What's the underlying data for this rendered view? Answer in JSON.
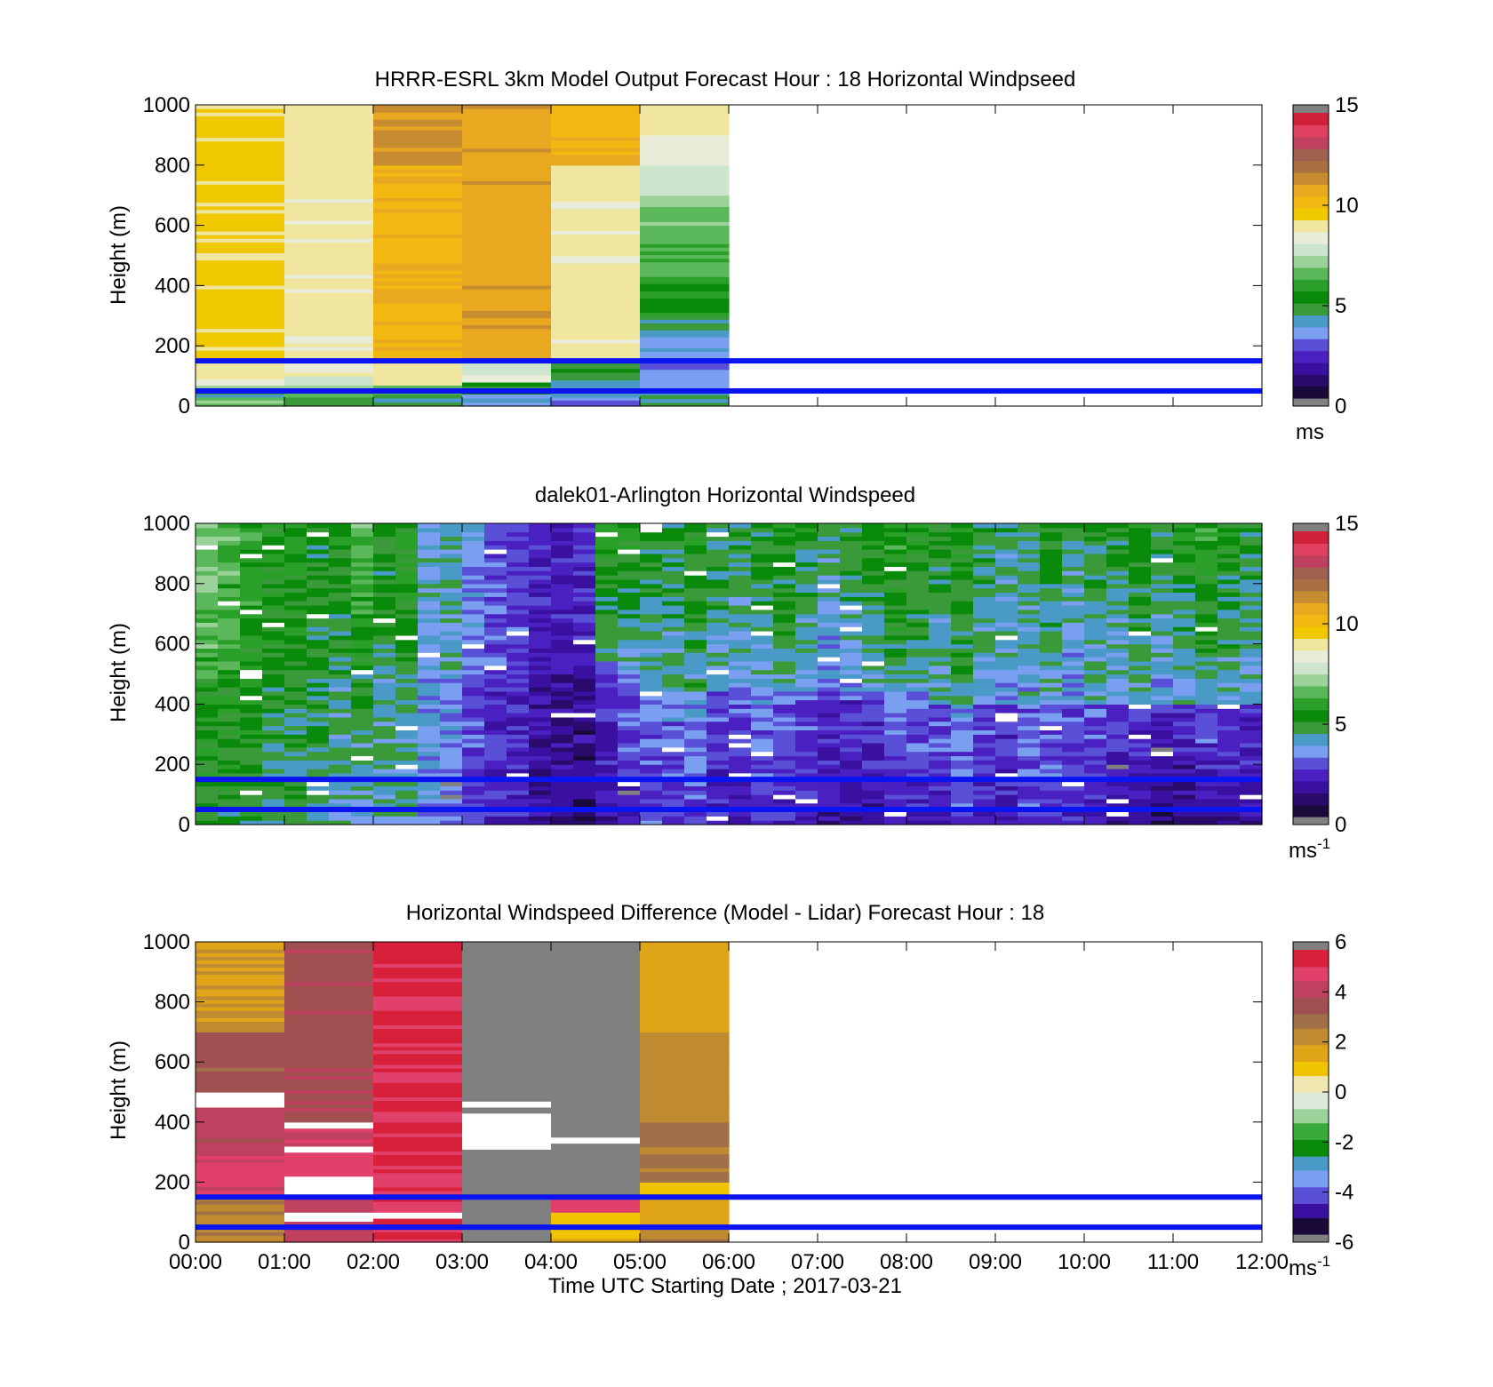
{
  "chart_data": [
    {
      "type": "heatmap",
      "title": "HRRR-ESRL 3km Model Output   Forecast Hour : 18 Horizontal Windpseed",
      "ylabel": "Height (m)",
      "xlabel": "",
      "ylim": [
        0,
        1000
      ],
      "xlim": [
        0,
        12
      ],
      "yticks": [
        "0",
        "200",
        "400",
        "600",
        "800",
        "1000"
      ],
      "xticks": [],
      "colorbar": {
        "ticks": [
          "0",
          "5",
          "10",
          "15"
        ],
        "range": [
          0,
          15
        ],
        "unit": "ms",
        "unit_sup": "",
        "palette": "speed"
      },
      "reference_lines_m": [
        50,
        150
      ],
      "data_extent_hours": [
        0,
        6
      ],
      "bins_per_hour": 1,
      "columns": [
        {
          "hour": 0,
          "levels": [
            [
              0,
              30,
              7
            ],
            [
              30,
              50,
              4.5
            ],
            [
              50,
              70,
              7.5
            ],
            [
              70,
              90,
              8.5
            ],
            [
              90,
              150,
              9
            ],
            [
              150,
              1000,
              9.5
            ]
          ]
        },
        {
          "hour": 1,
          "levels": [
            [
              0,
              30,
              5
            ],
            [
              30,
              50,
              6.5
            ],
            [
              50,
              70,
              7.5
            ],
            [
              70,
              100,
              8
            ],
            [
              100,
              150,
              8.5
            ],
            [
              150,
              1000,
              9
            ]
          ]
        },
        {
          "hour": 2,
          "levels": [
            [
              0,
              40,
              4.5
            ],
            [
              40,
              70,
              6.5
            ],
            [
              70,
              150,
              9
            ],
            [
              150,
              800,
              10.5
            ],
            [
              800,
              1000,
              11.5
            ]
          ]
        },
        {
          "hour": 3,
          "levels": [
            [
              0,
              40,
              3.5
            ],
            [
              40,
              80,
              5
            ],
            [
              80,
              150,
              8
            ],
            [
              150,
              1000,
              11
            ]
          ]
        },
        {
          "hour": 4,
          "levels": [
            [
              0,
              30,
              3
            ],
            [
              30,
              60,
              4
            ],
            [
              60,
              100,
              4.5
            ],
            [
              100,
              150,
              5
            ],
            [
              150,
              800,
              9
            ],
            [
              800,
              1000,
              10.5
            ]
          ]
        },
        {
          "hour": 5,
          "levels": [
            [
              0,
              50,
              4.5
            ],
            [
              50,
              110,
              3.5
            ],
            [
              110,
              170,
              3
            ],
            [
              170,
              230,
              3.5
            ],
            [
              230,
              300,
              4.5
            ],
            [
              300,
              430,
              5.5
            ],
            [
              430,
              600,
              6.3
            ],
            [
              600,
              700,
              7
            ],
            [
              700,
              800,
              7.7
            ],
            [
              800,
              900,
              8.5
            ],
            [
              900,
              1000,
              9
            ]
          ]
        }
      ]
    },
    {
      "type": "heatmap",
      "title": "dalek01-Arlington  Horizontal Windspeed",
      "ylabel": "Height (m)",
      "xlabel": "",
      "ylim": [
        0,
        1000
      ],
      "xlim": [
        0,
        12
      ],
      "yticks": [
        "0",
        "200",
        "400",
        "600",
        "800",
        "1000"
      ],
      "xticks": [],
      "colorbar": {
        "ticks": [
          "0",
          "5",
          "10",
          "15"
        ],
        "range": [
          0,
          15
        ],
        "unit": "ms",
        "unit_sup": "-1",
        "palette": "speed"
      },
      "reference_lines_m": [
        50,
        150
      ],
      "data_extent_hours": [
        0,
        11.85
      ],
      "bins_per_hour": 4,
      "columns": [
        {
          "hour": 0.0,
          "low": 5.0,
          "high": 7.0,
          "transition": 500
        },
        {
          "hour": 0.25,
          "low": 5.0,
          "high": 6.5,
          "transition": 500
        },
        {
          "hour": 0.5,
          "low": 5.0,
          "high": 6.0,
          "transition": 500
        },
        {
          "hour": 0.75,
          "low": 4.5,
          "high": 5.5,
          "transition": 500
        },
        {
          "hour": 1.0,
          "low": 4.5,
          "high": 5.5,
          "transition": 500
        },
        {
          "hour": 1.25,
          "low": 4.5,
          "high": 5.0,
          "transition": 500
        },
        {
          "hour": 1.5,
          "low": 4.0,
          "high": 5.2,
          "transition": 500
        },
        {
          "hour": 1.75,
          "low": 4.0,
          "high": 6.5,
          "transition": 500
        },
        {
          "hour": 2.0,
          "low": 4.0,
          "high": 5.0,
          "transition": 500
        },
        {
          "hour": 2.25,
          "low": 4.0,
          "high": 5.5,
          "transition": 500
        },
        {
          "hour": 2.5,
          "low": 3.5,
          "high": 4.0,
          "transition": 500
        },
        {
          "hour": 2.75,
          "low": 3.0,
          "high": 4.5,
          "transition": 500
        },
        {
          "hour": 3.0,
          "low": 2.5,
          "high": 3.5,
          "transition": 500
        },
        {
          "hour": 3.25,
          "low": 2.0,
          "high": 3.0,
          "transition": 500
        },
        {
          "hour": 3.5,
          "low": 2.0,
          "high": 2.8,
          "transition": 500
        },
        {
          "hour": 3.75,
          "low": 1.5,
          "high": 2.5,
          "transition": 500
        },
        {
          "hour": 4.0,
          "low": 1.5,
          "high": 2.0,
          "transition": 500
        },
        {
          "hour": 4.25,
          "low": 1.0,
          "high": 2.5,
          "transition": 500
        },
        {
          "hour": 4.5,
          "low": 1.5,
          "high": 6.0,
          "transition": 550
        },
        {
          "hour": 4.75,
          "low": 2.0,
          "high": 5.5,
          "transition": 500
        },
        {
          "hour": 5.0,
          "low": 2.5,
          "high": 5.0,
          "transition": 450
        },
        {
          "hour": 5.25,
          "low": 2.5,
          "high": 5.0,
          "transition": 450
        },
        {
          "hour": 5.5,
          "low": 2.5,
          "high": 5.5,
          "transition": 450
        },
        {
          "hour": 5.75,
          "low": 2.0,
          "high": 5.0,
          "transition": 450
        },
        {
          "hour": 6.0,
          "low": 2.0,
          "high": 4.5,
          "transition": 450
        },
        {
          "hour": 6.25,
          "low": 2.5,
          "high": 5.0,
          "transition": 450
        },
        {
          "hour": 6.5,
          "low": 2.0,
          "high": 5.5,
          "transition": 450
        },
        {
          "hour": 6.75,
          "low": 2.0,
          "high": 5.0,
          "transition": 450
        },
        {
          "hour": 7.0,
          "low": 1.5,
          "high": 4.5,
          "transition": 450
        },
        {
          "hour": 7.25,
          "low": 1.5,
          "high": 5.0,
          "transition": 450
        },
        {
          "hour": 7.5,
          "low": 1.5,
          "high": 5.5,
          "transition": 450
        },
        {
          "hour": 7.75,
          "low": 2.0,
          "high": 6.0,
          "transition": 450
        },
        {
          "hour": 8.0,
          "low": 2.0,
          "high": 5.5,
          "transition": 450
        },
        {
          "hour": 8.25,
          "low": 2.0,
          "high": 5.0,
          "transition": 400
        },
        {
          "hour": 8.5,
          "low": 2.5,
          "high": 5.5,
          "transition": 400
        },
        {
          "hour": 8.75,
          "low": 2.0,
          "high": 5.0,
          "transition": 400
        },
        {
          "hour": 9.0,
          "low": 2.0,
          "high": 4.5,
          "transition": 400
        },
        {
          "hour": 9.25,
          "low": 2.5,
          "high": 4.5,
          "transition": 400
        },
        {
          "hour": 9.5,
          "low": 2.5,
          "high": 5.0,
          "transition": 400
        },
        {
          "hour": 9.75,
          "low": 2.0,
          "high": 4.5,
          "transition": 400
        },
        {
          "hour": 10.0,
          "low": 2.0,
          "high": 5.0,
          "transition": 400
        },
        {
          "hour": 10.25,
          "low": 1.5,
          "high": 5.0,
          "transition": 400
        },
        {
          "hour": 10.5,
          "low": 1.5,
          "high": 5.5,
          "transition": 400
        },
        {
          "hour": 10.75,
          "low": 1.0,
          "high": 5.0,
          "transition": 400
        },
        {
          "hour": 11.0,
          "low": 1.0,
          "high": 5.5,
          "transition": 400
        },
        {
          "hour": 11.25,
          "low": 1.5,
          "high": 6.0,
          "transition": 400
        },
        {
          "hour": 11.5,
          "low": 1.5,
          "high": 5.5,
          "transition": 400
        },
        {
          "hour": 11.75,
          "low": 1.5,
          "high": 5.0,
          "transition": 400
        }
      ]
    },
    {
      "type": "heatmap",
      "title": "Horizontal Windspeed Difference (Model - Lidar) Forecast Hour : 18",
      "ylabel": "Height (m)",
      "xlabel": "Time UTC  Starting Date ; 2017-03-21",
      "ylim": [
        0,
        1000
      ],
      "xlim": [
        0,
        12
      ],
      "yticks": [
        "0",
        "200",
        "400",
        "600",
        "800",
        "1000"
      ],
      "xticks": [
        "00:00",
        "01:00",
        "02:00",
        "03:00",
        "04:00",
        "05:00",
        "06:00",
        "07:00",
        "08:00",
        "09:00",
        "10:00",
        "11:00",
        "12:00"
      ],
      "colorbar": {
        "ticks": [
          "-6",
          "-4",
          "-2",
          "0",
          "2",
          "4",
          "6"
        ],
        "range": [
          -6,
          6
        ],
        "unit": "ms",
        "unit_sup": "-1",
        "palette": "diff"
      },
      "reference_lines_m": [
        50,
        150
      ],
      "data_extent_hours": [
        0,
        6
      ],
      "bins_per_hour": 1,
      "columns": [
        {
          "hour": 0,
          "levels": [
            [
              0,
              150,
              2.5
            ],
            [
              150,
              300,
              4.8
            ],
            [
              300,
              450,
              4.2
            ],
            [
              450,
              500,
              null
            ],
            [
              500,
              700,
              3.5
            ],
            [
              700,
              1000,
              2.0
            ]
          ]
        },
        {
          "hour": 1,
          "levels": [
            [
              0,
              70,
              4.5
            ],
            [
              70,
              100,
              null
            ],
            [
              100,
              160,
              4.5
            ],
            [
              160,
              220,
              null
            ],
            [
              220,
              300,
              5.0
            ],
            [
              300,
              320,
              null
            ],
            [
              320,
              380,
              4.5
            ],
            [
              380,
              400,
              null
            ],
            [
              400,
              1000,
              3.8
            ]
          ]
        },
        {
          "hour": 2,
          "levels": [
            [
              0,
              80,
              5.5
            ],
            [
              80,
              100,
              null
            ],
            [
              100,
              160,
              5.2
            ],
            [
              160,
              1000,
              5.4
            ]
          ]
        },
        {
          "hour": 3,
          "levels": [
            [
              0,
              80,
              6.5
            ],
            [
              80,
              310,
              6.5
            ],
            [
              310,
              430,
              null
            ],
            [
              430,
              450,
              6.5
            ],
            [
              450,
              470,
              null
            ],
            [
              470,
              1000,
              6.5
            ]
          ]
        },
        {
          "hour": 4,
          "levels": [
            [
              0,
              40,
              1.5
            ],
            [
              40,
              100,
              1.0
            ],
            [
              100,
              150,
              5.0
            ],
            [
              150,
              330,
              6.5
            ],
            [
              330,
              350,
              null
            ],
            [
              350,
              1000,
              6.5
            ]
          ]
        },
        {
          "hour": 5,
          "levels": [
            [
              0,
              60,
              2.5
            ],
            [
              60,
              150,
              1.5
            ],
            [
              150,
              200,
              1.0
            ],
            [
              200,
              400,
              2.8
            ],
            [
              400,
              700,
              2.3
            ],
            [
              700,
              1000,
              1.6
            ]
          ]
        }
      ]
    }
  ],
  "palettes": {
    "speed": [
      "#1a0a3a",
      "#2a0a6a",
      "#3a10a0",
      "#4a20c0",
      "#5a50d8",
      "#7a9ef0",
      "#4a9ac8",
      "#3a9a3a",
      "#0a8a0a",
      "#2aa02a",
      "#5ab85a",
      "#9ad29a",
      "#cde5cd",
      "#e8ecd8",
      "#f0e6a0",
      "#f0c800",
      "#f0b810",
      "#e8a820",
      "#c88c30",
      "#a87040",
      "#a06050",
      "#c04060",
      "#e04060",
      "#d0203a"
    ],
    "diff": [
      "#1a0a3a",
      "#3a10a0",
      "#5a50d8",
      "#7a9ef0",
      "#4a9ac8",
      "#0a8a0a",
      "#3aaa3a",
      "#9ad29a",
      "#dde9d8",
      "#f0e6b0",
      "#f0c400",
      "#e0a418",
      "#c08a30",
      "#a07048",
      "#a05050",
      "#c04060",
      "#e0406a",
      "#d8203a"
    ],
    "nan_color": "#808080"
  }
}
